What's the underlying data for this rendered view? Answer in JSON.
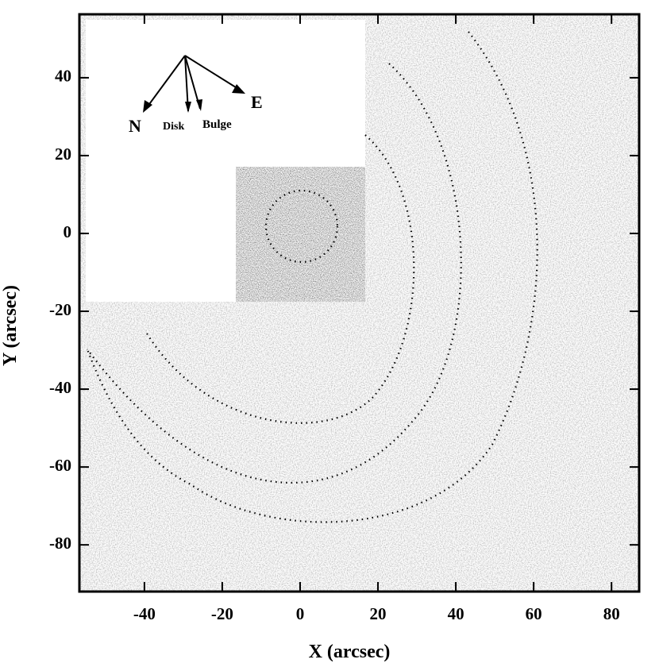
{
  "chart_data": {
    "type": "image",
    "xlabel": "X (arcsec)",
    "ylabel": "Y (arcsec)",
    "xlim": [
      -56.7,
      87.1
    ],
    "ylim": [
      -92,
      56.3
    ],
    "xticks": [
      -40,
      -20,
      0,
      20,
      40,
      60,
      80
    ],
    "yticks": [
      40,
      20,
      0,
      -20,
      -40,
      -60,
      -80
    ],
    "grid": false,
    "annotations": [
      "N",
      "Disk",
      "Bulge",
      "E"
    ]
  }
}
